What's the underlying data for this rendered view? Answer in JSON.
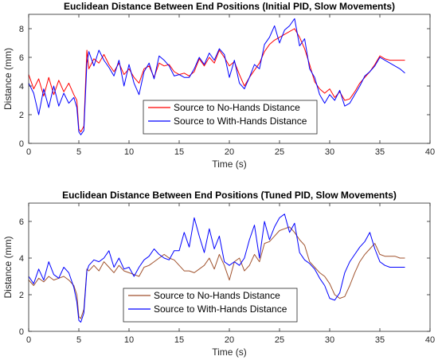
{
  "chart_data": [
    {
      "type": "line",
      "title": "Euclidean Distance Between End Positions (Initial PID, Slow Movements)",
      "xlabel": "Time (s)",
      "ylabel": "Distance (mm)",
      "xlim": [
        0,
        40
      ],
      "ylim": [
        0,
        9
      ],
      "xticks": [
        0,
        5,
        10,
        15,
        20,
        25,
        30,
        35,
        40
      ],
      "yticks": [
        0,
        2,
        4,
        6,
        8
      ],
      "grid": false,
      "legend": "center",
      "series": [
        {
          "name": "Source to No-Hands Distance",
          "color": "#ff0000",
          "x": [
            0,
            0.5,
            1,
            1.5,
            2,
            2.5,
            3,
            3.5,
            4,
            4.5,
            4.8,
            5,
            5.2,
            5.5,
            5.8,
            6,
            6.5,
            7,
            7.5,
            8,
            8.5,
            9,
            9.5,
            10,
            10.5,
            11,
            11.5,
            12,
            12.5,
            13,
            13.5,
            14,
            14.5,
            15,
            15.5,
            16,
            16.5,
            17,
            17.5,
            18,
            18.5,
            19,
            19.5,
            20,
            20.5,
            21,
            21.5,
            22,
            22.5,
            23,
            23.5,
            24,
            24.5,
            25,
            25.5,
            26,
            26.5,
            27,
            27.5,
            28,
            28.5,
            29,
            29.5,
            30,
            30.5,
            31,
            31.5,
            32,
            32.5,
            33,
            33.5,
            34,
            34.5,
            35,
            35.5,
            36,
            36.5,
            37,
            37.5
          ],
          "y": [
            4.8,
            3.8,
            4.5,
            3.3,
            4.6,
            3.4,
            4.4,
            3.6,
            4.2,
            3.4,
            3.0,
            1.0,
            0.8,
            1.2,
            6.5,
            5.2,
            5.9,
            5.6,
            6.2,
            5.5,
            5.0,
            5.6,
            4.8,
            5.2,
            4.6,
            4.2,
            5.2,
            5.4,
            4.6,
            5.6,
            5.4,
            5.5,
            5.0,
            4.8,
            4.9,
            4.7,
            5.0,
            5.9,
            5.4,
            6.0,
            5.6,
            6.5,
            6.0,
            5.4,
            5.7,
            4.8,
            4.0,
            4.6,
            5.1,
            5.6,
            6.4,
            6.9,
            7.2,
            7.4,
            7.6,
            7.8,
            8.0,
            7.4,
            6.6,
            5.5,
            4.3,
            3.8,
            3.5,
            3.8,
            3.2,
            3.6,
            3.0,
            3.1,
            3.6,
            4.2,
            4.6,
            5.0,
            5.5,
            6.1,
            5.9,
            5.8,
            5.8,
            5.8,
            5.8
          ]
        },
        {
          "name": "Source to With-Hands Distance",
          "color": "#0000ff",
          "x": [
            0,
            0.5,
            1,
            1.5,
            2,
            2.5,
            3,
            3.5,
            4,
            4.5,
            4.8,
            5,
            5.2,
            5.5,
            5.8,
            6,
            6.5,
            7,
            7.5,
            8,
            8.5,
            9,
            9.5,
            10,
            10.5,
            11,
            11.5,
            12,
            12.5,
            13,
            13.5,
            14,
            14.5,
            15,
            15.5,
            16,
            16.5,
            17,
            17.5,
            18,
            18.5,
            19,
            19.5,
            20,
            20.5,
            21,
            21.5,
            22,
            22.5,
            23,
            23.5,
            24,
            24.5,
            25,
            25.5,
            26,
            26.5,
            27,
            27.5,
            28,
            28.5,
            29,
            29.5,
            30,
            30.5,
            31,
            31.5,
            32,
            32.5,
            33,
            33.5,
            34,
            34.5,
            35,
            35.5,
            36,
            36.5,
            37,
            37.5
          ],
          "y": [
            4.2,
            3.5,
            2.0,
            3.8,
            2.5,
            4.0,
            2.6,
            3.5,
            2.8,
            3.2,
            2.5,
            0.8,
            0.6,
            0.9,
            5.6,
            6.4,
            5.4,
            6.5,
            5.8,
            5.3,
            4.7,
            5.8,
            4.0,
            5.5,
            4.2,
            3.4,
            5.0,
            5.6,
            4.5,
            6.1,
            5.8,
            5.4,
            4.7,
            4.8,
            4.6,
            4.6,
            5.2,
            6.0,
            5.5,
            6.3,
            5.8,
            6.6,
            6.2,
            4.6,
            5.8,
            4.2,
            3.8,
            4.6,
            5.5,
            5.2,
            6.9,
            7.4,
            8.2,
            7.0,
            7.9,
            8.2,
            8.7,
            6.8,
            7.3,
            5.2,
            4.6,
            3.4,
            2.8,
            3.4,
            3.0,
            3.7,
            2.6,
            2.8,
            3.4,
            4.0,
            4.7,
            5.0,
            5.4,
            6.0,
            5.8,
            5.6,
            5.4,
            5.2,
            4.9
          ]
        }
      ]
    },
    {
      "type": "line",
      "title": "Euclidean Distance Between End Positions (Tuned PID, Slow Movements)",
      "xlabel": "Time (s)",
      "ylabel": "Distance (mm)",
      "xlim": [
        0,
        40
      ],
      "ylim": [
        0,
        7
      ],
      "xticks": [
        0,
        5,
        10,
        15,
        20,
        25,
        30,
        35,
        40
      ],
      "yticks": [
        0,
        2,
        4,
        6
      ],
      "grid": false,
      "legend": "bottom-left",
      "series": [
        {
          "name": "Source to No-Hands Distance",
          "color": "#a0522d",
          "x": [
            0,
            0.5,
            1,
            1.5,
            2,
            2.5,
            3,
            3.5,
            4,
            4.5,
            4.8,
            5,
            5.2,
            5.5,
            5.8,
            6,
            6.5,
            7,
            7.5,
            8,
            8.5,
            9,
            9.5,
            10,
            10.5,
            11,
            11.5,
            12,
            12.5,
            13,
            13.5,
            14,
            14.5,
            15,
            15.5,
            16,
            16.5,
            17,
            17.5,
            18,
            18.5,
            19,
            19.5,
            20,
            20.5,
            21,
            21.5,
            22,
            22.5,
            23,
            23.5,
            24,
            24.5,
            25,
            25.5,
            26,
            26.5,
            27,
            27.5,
            28,
            28.5,
            29,
            29.5,
            30,
            30.5,
            31,
            31.5,
            32,
            32.5,
            33,
            33.5,
            34,
            34.5,
            35,
            35.5,
            36,
            36.5,
            37,
            37.5
          ],
          "y": [
            2.8,
            2.5,
            2.9,
            2.7,
            3.0,
            2.8,
            2.9,
            3.0,
            2.8,
            2.5,
            2.0,
            0.8,
            0.7,
            1.2,
            3.4,
            3.3,
            3.6,
            3.3,
            3.8,
            3.5,
            3.2,
            3.6,
            3.3,
            3.2,
            3.1,
            3.0,
            3.5,
            3.6,
            3.8,
            4.0,
            4.2,
            4.0,
            3.9,
            3.6,
            3.3,
            3.3,
            3.2,
            3.4,
            3.6,
            4.0,
            3.4,
            4.2,
            3.6,
            2.8,
            3.8,
            4.0,
            3.3,
            3.6,
            4.2,
            3.8,
            4.8,
            4.9,
            5.2,
            5.5,
            5.6,
            5.7,
            5.4,
            5.0,
            4.7,
            3.8,
            3.5,
            3.2,
            3.0,
            2.6,
            2.0,
            1.8,
            1.9,
            2.5,
            3.2,
            3.8,
            4.2,
            4.5,
            4.8,
            4.2,
            4.1,
            4.1,
            4.1,
            4.0,
            4.0
          ]
        },
        {
          "name": "Source to With-Hands Distance",
          "color": "#0000ff",
          "x": [
            0,
            0.5,
            1,
            1.5,
            2,
            2.5,
            3,
            3.5,
            4,
            4.5,
            4.8,
            5,
            5.2,
            5.5,
            5.8,
            6,
            6.5,
            7,
            7.5,
            8,
            8.5,
            9,
            9.5,
            10,
            10.5,
            11,
            11.5,
            12,
            12.5,
            13,
            13.5,
            14,
            14.5,
            15,
            15.5,
            16,
            16.5,
            17,
            17.5,
            18,
            18.5,
            19,
            19.5,
            20,
            20.5,
            21,
            21.5,
            22,
            22.5,
            23,
            23.5,
            24,
            24.5,
            25,
            25.5,
            26,
            26.5,
            27,
            27.5,
            28,
            28.5,
            29,
            29.5,
            30,
            30.5,
            31,
            31.5,
            32,
            32.5,
            33,
            33.5,
            34,
            34.5,
            35,
            35.5,
            36,
            36.5,
            37,
            37.5
          ],
          "y": [
            3.0,
            2.6,
            3.4,
            2.8,
            3.8,
            3.1,
            2.9,
            3.5,
            3.2,
            2.4,
            1.6,
            0.6,
            0.5,
            1.0,
            3.3,
            3.6,
            3.9,
            3.8,
            4.0,
            4.4,
            3.5,
            4.0,
            3.4,
            3.5,
            3.0,
            3.5,
            3.9,
            4.1,
            4.5,
            4.2,
            4.0,
            3.9,
            4.4,
            4.4,
            5.4,
            4.6,
            6.2,
            5.2,
            4.3,
            5.6,
            4.5,
            5.2,
            3.8,
            3.6,
            3.8,
            3.6,
            4.0,
            5.0,
            5.8,
            4.0,
            6.0,
            5.0,
            5.7,
            6.2,
            6.4,
            5.4,
            5.9,
            4.3,
            3.9,
            3.7,
            3.4,
            2.9,
            2.5,
            1.8,
            1.7,
            2.1,
            3.2,
            3.8,
            4.2,
            4.6,
            4.9,
            5.4,
            4.5,
            3.8,
            3.6,
            3.5,
            3.5,
            3.5,
            3.5
          ]
        }
      ]
    }
  ]
}
